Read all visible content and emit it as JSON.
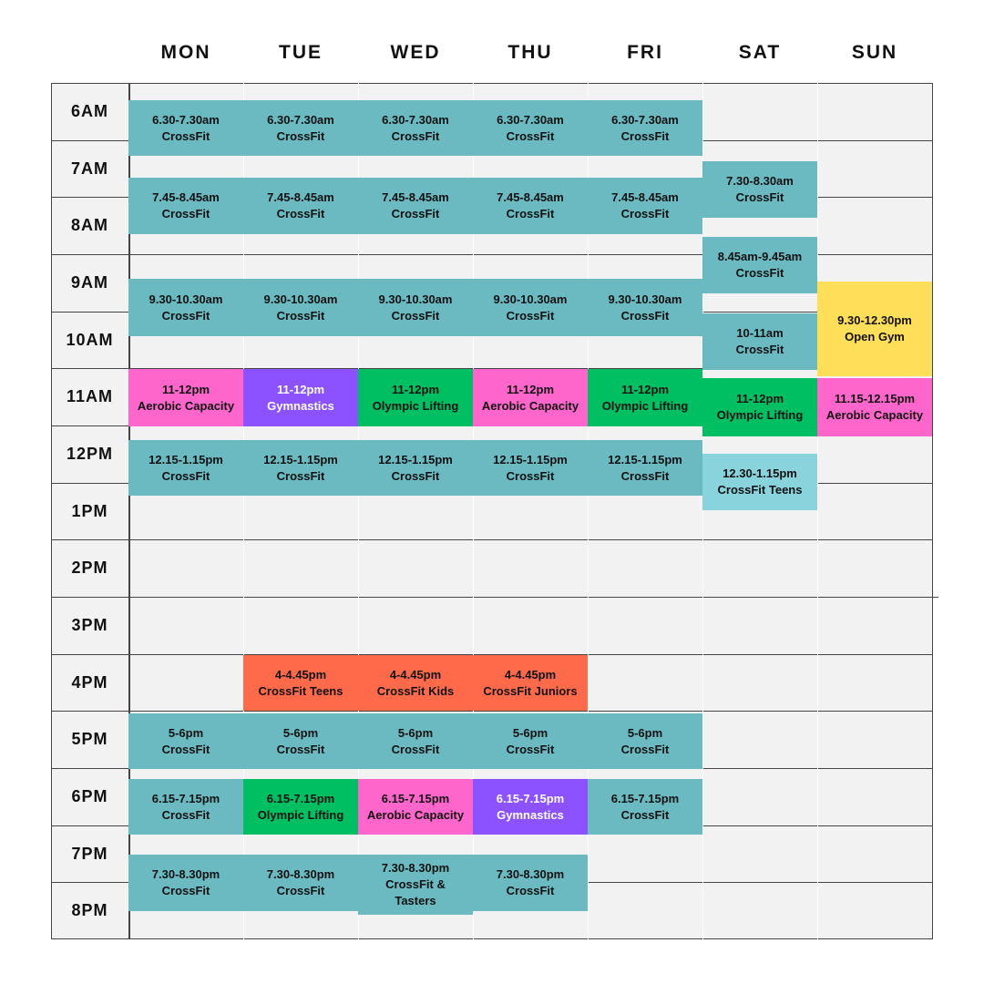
{
  "times": [
    "6AM",
    "7AM",
    "8AM",
    "9AM",
    "10AM",
    "11AM",
    "12PM",
    "1PM",
    "2PM",
    "3PM",
    "4PM",
    "5PM",
    "6PM",
    "7PM",
    "8PM"
  ],
  "days": [
    {
      "label": "MON",
      "events": [
        {
          "time": "6.30-7.30am",
          "name": "CrossFit",
          "color": "#6bbac2"
        },
        {
          "time": "7.45-8.45am",
          "name": "CrossFit",
          "color": "#6bbac2"
        },
        {
          "time": "9.30-10.30am",
          "name": "CrossFit",
          "color": "#6bbac2"
        },
        {
          "time": "11-12pm",
          "name": "Aerobic Capacity",
          "color": "#ff66cc"
        },
        {
          "time": "12.15-1.15pm",
          "name": "CrossFit",
          "color": "#6bbac2"
        },
        {
          "time": "5-6pm",
          "name": "CrossFit",
          "color": "#6bbac2"
        },
        {
          "time": "6.15-7.15pm",
          "name": "CrossFit",
          "color": "#6bbac2"
        },
        {
          "time": "7.30-8.30pm",
          "name": "CrossFit",
          "color": "#6bbac2"
        }
      ]
    },
    {
      "label": "TUE",
      "events": [
        {
          "time": "6.30-7.30am",
          "name": "CrossFit",
          "color": "#6bbac2"
        },
        {
          "time": "7.45-8.45am",
          "name": "CrossFit",
          "color": "#6bbac2"
        },
        {
          "time": "9.30-10.30am",
          "name": "CrossFit",
          "color": "#6bbac2"
        },
        {
          "time": "11-12pm",
          "name": "Gymnastics",
          "color": "#8c52ff"
        },
        {
          "time": "12.15-1.15pm",
          "name": "CrossFit",
          "color": "#6bbac2"
        },
        {
          "time": "4-4.45pm",
          "name": "CrossFit Teens",
          "color": "#ff6b4a"
        },
        {
          "time": "5-6pm",
          "name": "CrossFit",
          "color": "#6bbac2"
        },
        {
          "time": "6.15-7.15pm",
          "name": "Olympic Lifting",
          "color": "#00bf63"
        },
        {
          "time": "7.30-8.30pm",
          "name": "CrossFit",
          "color": "#6bbac2"
        }
      ]
    },
    {
      "label": "WED",
      "events": [
        {
          "time": "6.30-7.30am",
          "name": "CrossFit",
          "color": "#6bbac2"
        },
        {
          "time": "7.45-8.45am",
          "name": "CrossFit",
          "color": "#6bbac2"
        },
        {
          "time": "9.30-10.30am",
          "name": "CrossFit",
          "color": "#6bbac2"
        },
        {
          "time": "11-12pm",
          "name": "Olympic Lifting",
          "color": "#00bf63"
        },
        {
          "time": "12.15-1.15pm",
          "name": "CrossFit",
          "color": "#6bbac2"
        },
        {
          "time": "4-4.45pm",
          "name": "CrossFit Kids",
          "color": "#ff6b4a"
        },
        {
          "time": "5-6pm",
          "name": "CrossFit",
          "color": "#6bbac2"
        },
        {
          "time": "6.15-7.15pm",
          "name": "Aerobic Capacity",
          "color": "#ff66cc"
        },
        {
          "time": "7.30-8.30pm",
          "name": "CrossFit & Tasters",
          "color": "#6bbac2"
        }
      ]
    },
    {
      "label": "THU",
      "events": [
        {
          "time": "6.30-7.30am",
          "name": "CrossFit",
          "color": "#6bbac2"
        },
        {
          "time": "7.45-8.45am",
          "name": "CrossFit",
          "color": "#6bbac2"
        },
        {
          "time": "9.30-10.30am",
          "name": "CrossFit",
          "color": "#6bbac2"
        },
        {
          "time": "11-12pm",
          "name": "Aerobic Capacity",
          "color": "#ff66cc"
        },
        {
          "time": "12.15-1.15pm",
          "name": "CrossFit",
          "color": "#6bbac2"
        },
        {
          "time": "4-4.45pm",
          "name": "CrossFit Juniors",
          "color": "#ff6b4a"
        },
        {
          "time": "5-6pm",
          "name": "CrossFit",
          "color": "#6bbac2"
        },
        {
          "time": "6.15-7.15pm",
          "name": "Gymnastics",
          "color": "#8c52ff"
        },
        {
          "time": "7.30-8.30pm",
          "name": "CrossFit",
          "color": "#6bbac2"
        }
      ]
    },
    {
      "label": "FRI",
      "events": [
        {
          "time": "6.30-7.30am",
          "name": "CrossFit",
          "color": "#6bbac2"
        },
        {
          "time": "7.45-8.45am",
          "name": "CrossFit",
          "color": "#6bbac2"
        },
        {
          "time": "9.30-10.30am",
          "name": "CrossFit",
          "color": "#6bbac2"
        },
        {
          "time": "11-12pm",
          "name": "Olympic Lifting",
          "color": "#00bf63"
        },
        {
          "time": "12.15-1.15pm",
          "name": "CrossFit",
          "color": "#6bbac2"
        },
        {
          "time": "5-6pm",
          "name": "CrossFit",
          "color": "#6bbac2"
        },
        {
          "time": "6.15-7.15pm",
          "name": "CrossFit",
          "color": "#6bbac2"
        }
      ]
    },
    {
      "label": "SAT",
      "events": [
        {
          "time": "7.30-8.30am",
          "name": "CrossFit",
          "color": "#6bbac2"
        },
        {
          "time": "8.45am-9.45am",
          "name": "CrossFit",
          "color": "#6bbac2"
        },
        {
          "time": "10-11am",
          "name": "CrossFit",
          "color": "#6bbac2"
        },
        {
          "time": "11-12pm",
          "name": "Olympic Lifting",
          "color": "#00bf63"
        },
        {
          "time": "12.30-1.15pm",
          "name": "CrossFit Teens",
          "color": "#88d3dc"
        }
      ]
    },
    {
      "label": "SUN",
      "events": [
        {
          "time": "9.30-12.30pm",
          "name": "Open Gym",
          "color": "#ffde59"
        },
        {
          "time": "11.15-12.15pm",
          "name": "Aerobic Capacity",
          "color": "#ff66cc"
        }
      ]
    }
  ]
}
